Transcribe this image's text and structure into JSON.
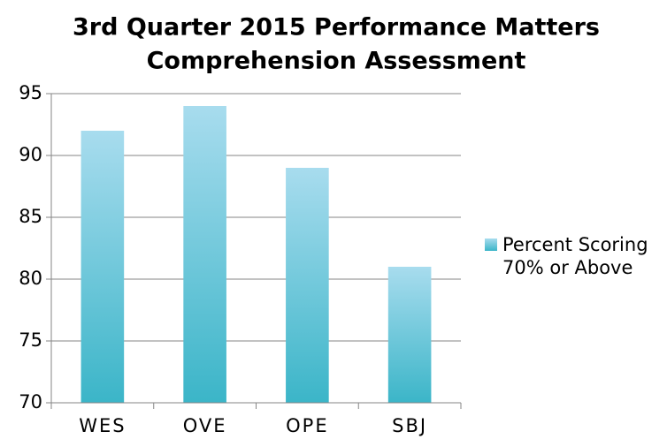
{
  "chart_data": {
    "type": "bar",
    "title": [
      "3rd Quarter 2015 Performance Matters",
      "Comprehension Assessment"
    ],
    "categories": [
      "WES",
      "OVE",
      "OPE",
      "SBJ"
    ],
    "series": [
      {
        "name": "Percent Scoring 70% or Above",
        "color": "#4dbdd0",
        "values": [
          92,
          94,
          89,
          81
        ]
      }
    ],
    "ylim": [
      70,
      95
    ],
    "yticks": [
      70,
      75,
      80,
      85,
      90,
      95
    ],
    "grid": true,
    "legend": "right"
  }
}
